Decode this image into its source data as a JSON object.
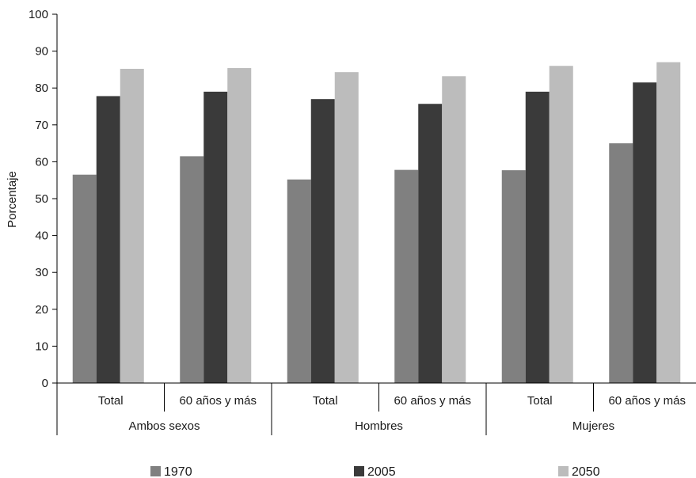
{
  "chart_data": {
    "type": "bar",
    "title": "",
    "xlabel": "",
    "ylabel": "Porcentaje",
    "ylim": [
      0,
      100
    ],
    "yticks": [
      0,
      10,
      20,
      30,
      40,
      50,
      60,
      70,
      80,
      90,
      100
    ],
    "grid": false,
    "legend_position": "bottom",
    "groups": [
      {
        "label": "Ambos sexos",
        "categories": [
          "Total",
          "60 años y más"
        ]
      },
      {
        "label": "Hombres",
        "categories": [
          "Total",
          "60 años y más"
        ]
      },
      {
        "label": "Mujeres",
        "categories": [
          "Total",
          "60 años y más"
        ]
      }
    ],
    "categories": [
      "Total",
      "60 años y más",
      "Total",
      "60 años y más",
      "Total",
      "60 años y más"
    ],
    "series": [
      {
        "name": "1970",
        "color": "#808080",
        "values": [
          56.5,
          61.5,
          55.2,
          57.8,
          57.7,
          65.0
        ]
      },
      {
        "name": "2005",
        "color": "#3a3a3a",
        "values": [
          77.8,
          79.0,
          77.0,
          75.7,
          79.0,
          81.5
        ]
      },
      {
        "name": "2050",
        "color": "#bcbcbc",
        "values": [
          85.2,
          85.4,
          84.3,
          83.2,
          86.0,
          87.0
        ]
      }
    ]
  }
}
